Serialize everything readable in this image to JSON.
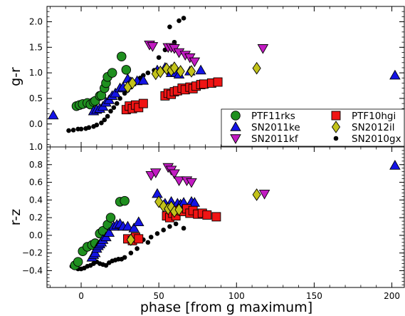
{
  "chart_data": {
    "type": "scatter",
    "xlabel": "phase [from g maximum]",
    "xlim": [
      -22,
      208
    ],
    "x_ticks": [
      0,
      50,
      100,
      150,
      200
    ],
    "x_tick_labels": [
      "0",
      "50",
      "100",
      "150",
      "200"
    ],
    "styles": {
      "PTF11rks": {
        "marker": "circle",
        "color": "#1f8f1f"
      },
      "SN2011ke": {
        "marker": "triangle",
        "color": "#1414e6"
      },
      "SN2011kf": {
        "marker": "tri-down",
        "color": "#c21bc2"
      },
      "PTF10hgi": {
        "marker": "square",
        "color": "#f01414"
      },
      "SN2012il": {
        "marker": "diamond",
        "color": "#c2c21a"
      },
      "SN2010gx": {
        "marker": "dot",
        "color": "#000000"
      }
    },
    "panels": [
      {
        "ylabel": "g-r",
        "ylim": [
          -0.45,
          2.3
        ],
        "y_ticks": [
          0.0,
          0.5,
          1.0,
          1.5,
          2.0
        ],
        "y_tick_labels": [
          "0.0",
          "0.5",
          "1.0",
          "1.5",
          "2.0"
        ],
        "legend": {
          "placement": "lower-right",
          "entries": [
            "PTF11rks",
            "PTF10hgi",
            "SN2011ke",
            "SN2012il",
            "SN2011kf",
            "SN2010gx"
          ]
        },
        "series": [
          {
            "name": "PTF11rks",
            "x": [
              -3,
              -1,
              1,
              4,
              6,
              8,
              9,
              12,
              13,
              15,
              16,
              17,
              20,
              26,
              29
            ],
            "y": [
              0.35,
              0.37,
              0.39,
              0.41,
              0.38,
              0.43,
              0.45,
              0.55,
              0.56,
              0.7,
              0.8,
              0.92,
              1.0,
              1.32,
              1.06
            ]
          },
          {
            "name": "SN2011ke",
            "x": [
              -18,
              8,
              10,
              12,
              14,
              16,
              18,
              20,
              22,
              25,
              27,
              30,
              32,
              36,
              40,
              49,
              54,
              58,
              61,
              63,
              70,
              77,
              202
            ],
            "y": [
              0.17,
              0.25,
              0.28,
              0.3,
              0.34,
              0.42,
              0.47,
              0.55,
              0.6,
              0.7,
              0.72,
              0.88,
              0.82,
              0.84,
              0.85,
              1.05,
              1.1,
              1.0,
              1.0,
              0.97,
              1.03,
              1.05,
              0.95
            ]
          },
          {
            "name": "SN2011kf",
            "x": [
              44,
              46,
              56,
              58,
              60,
              63,
              67,
              70,
              73,
              117
            ],
            "y": [
              1.55,
              1.52,
              1.5,
              1.5,
              1.48,
              1.4,
              1.35,
              1.3,
              1.22,
              1.48
            ]
          },
          {
            "name": "PTF10hgi",
            "x": [
              29,
              31,
              33,
              35,
              37,
              40,
              54,
              56,
              58,
              60,
              62,
              65,
              67,
              70,
              72,
              74,
              77,
              79,
              84,
              88
            ],
            "y": [
              0.28,
              0.35,
              0.3,
              0.37,
              0.32,
              0.4,
              0.55,
              0.6,
              0.58,
              0.63,
              0.65,
              0.7,
              0.67,
              0.72,
              0.69,
              0.74,
              0.77,
              0.78,
              0.8,
              0.82
            ]
          },
          {
            "name": "SN2012il",
            "x": [
              30,
              33,
              48,
              51,
              55,
              58,
              60,
              64,
              71,
              113
            ],
            "y": [
              0.72,
              0.8,
              0.98,
              1.02,
              1.08,
              1.05,
              1.1,
              1.03,
              1.03,
              1.09
            ]
          },
          {
            "name": "SN2010gx",
            "x": [
              -8,
              -5,
              -2,
              0,
              3,
              5,
              8,
              10,
              13,
              15,
              17,
              19,
              21,
              23,
              25,
              28,
              30,
              32,
              34,
              36,
              38,
              40,
              43,
              47,
              50,
              54,
              57,
              60,
              63,
              66
            ],
            "y": [
              -0.13,
              -0.12,
              -0.1,
              -0.1,
              -0.09,
              -0.07,
              -0.05,
              -0.02,
              0.02,
              0.08,
              0.15,
              0.25,
              0.32,
              0.4,
              0.5,
              0.6,
              0.66,
              0.72,
              0.8,
              0.85,
              0.9,
              0.95,
              1.0,
              1.05,
              1.3,
              1.45,
              1.9,
              1.6,
              2.02,
              2.07
            ]
          }
        ]
      },
      {
        "ylabel": "r-z",
        "ylim": [
          -0.59,
          1.0
        ],
        "y_ticks": [
          -0.4,
          -0.2,
          0.0,
          0.2,
          0.4,
          0.6,
          0.8,
          1.0
        ],
        "y_tick_labels": [
          "−0.4",
          "−0.2",
          "0.0",
          "0.2",
          "0.4",
          "0.6",
          "0.8",
          "1.0"
        ],
        "series": [
          {
            "name": "PTF11rks",
            "x": [
              -4,
              -2,
              1,
              4,
              7,
              9,
              12,
              14,
              17,
              19,
              25,
              28
            ],
            "y": [
              -0.34,
              -0.3,
              -0.18,
              -0.13,
              -0.11,
              -0.09,
              0.02,
              0.05,
              0.12,
              0.2,
              0.38,
              0.39
            ]
          },
          {
            "name": "SN2011ke",
            "x": [
              7,
              8,
              9,
              10,
              11,
              12,
              13,
              14,
              16,
              18,
              21,
              23,
              25,
              27,
              30,
              34,
              37,
              49,
              54,
              58,
              62,
              64,
              66,
              71,
              73,
              202
            ],
            "y": [
              -0.25,
              -0.22,
              -0.2,
              -0.15,
              -0.12,
              -0.1,
              -0.08,
              -0.05,
              -0.02,
              0.03,
              0.1,
              0.12,
              0.13,
              0.1,
              0.1,
              0.08,
              0.15,
              0.47,
              0.36,
              0.38,
              0.36,
              0.35,
              0.37,
              0.38,
              0.37,
              0.79
            ]
          },
          {
            "name": "SN2011kf",
            "x": [
              45,
              48,
              56,
              58,
              60,
              63,
              68,
              71,
              118
            ],
            "y": [
              0.68,
              0.71,
              0.77,
              0.74,
              0.7,
              0.62,
              0.62,
              0.6,
              0.47
            ]
          },
          {
            "name": "PTF10hgi",
            "x": [
              30,
              33,
              35,
              37,
              55,
              57,
              59,
              61,
              63,
              66,
              68,
              70,
              72,
              75,
              78,
              81,
              87
            ],
            "y": [
              -0.04,
              -0.06,
              -0.02,
              -0.04,
              0.22,
              0.2,
              0.25,
              0.22,
              0.28,
              0.27,
              0.3,
              0.25,
              0.28,
              0.24,
              0.25,
              0.23,
              0.21
            ]
          },
          {
            "name": "SN2012il",
            "x": [
              32,
              50,
              53,
              56,
              58,
              60,
              63,
              113
            ],
            "y": [
              -0.05,
              0.38,
              0.33,
              0.3,
              0.32,
              0.27,
              0.29,
              0.46
            ]
          },
          {
            "name": "SN2010gx",
            "x": [
              -6,
              -4,
              -2,
              0,
              2,
              4,
              6,
              8,
              10,
              12,
              14,
              16,
              18,
              20,
              22,
              24,
              26,
              28,
              32,
              36,
              40,
              43,
              45,
              49,
              53,
              57,
              61,
              66
            ],
            "y": [
              -0.35,
              -0.36,
              -0.38,
              -0.38,
              -0.37,
              -0.35,
              -0.34,
              -0.32,
              -0.3,
              -0.32,
              -0.33,
              -0.34,
              -0.31,
              -0.29,
              -0.28,
              -0.27,
              -0.27,
              -0.25,
              -0.2,
              -0.15,
              -0.05,
              -0.08,
              -0.02,
              0.02,
              0.06,
              0.1,
              0.13,
              0.08
            ]
          }
        ]
      }
    ]
  }
}
